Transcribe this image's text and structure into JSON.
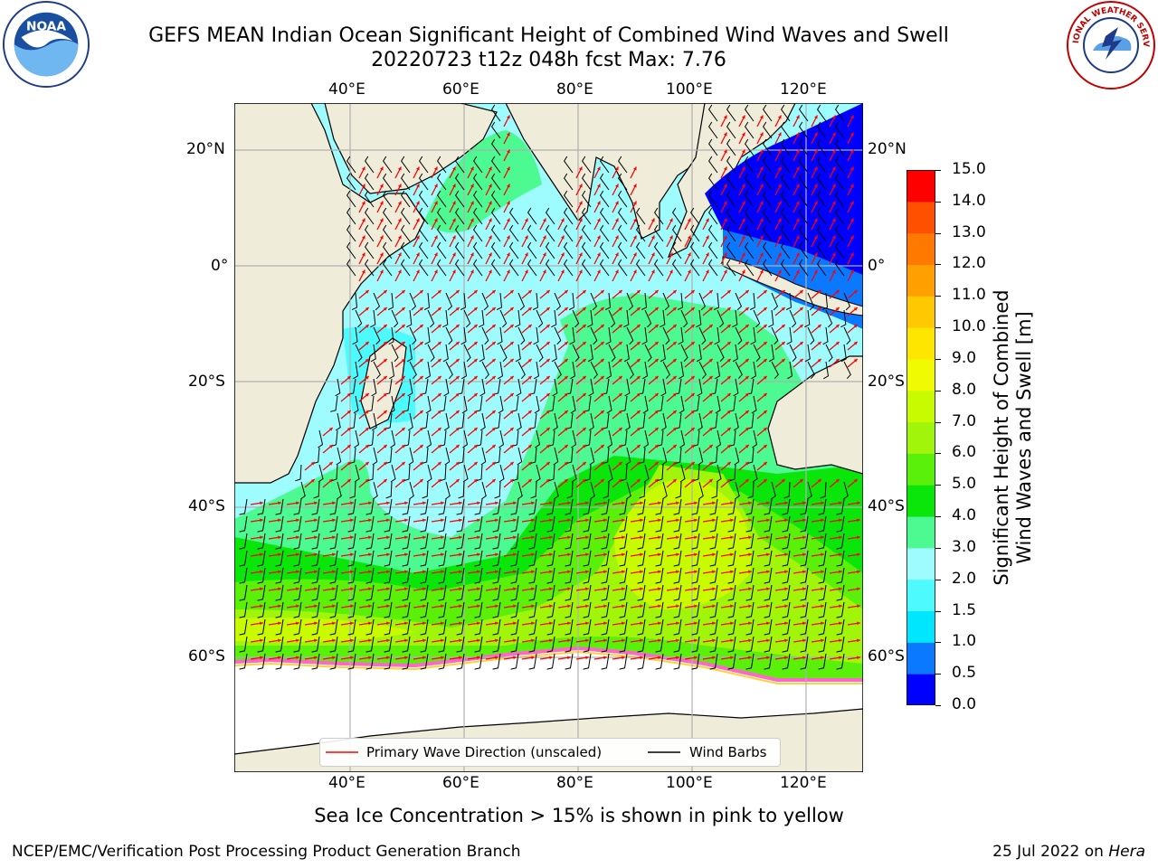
{
  "header": {
    "title_line1": "GEFS MEAN Indian Ocean Significant Height of Combined Wind Waves and Swell",
    "title_line2": "20220723 t12z 048h fcst   Max: 7.76"
  },
  "logos": {
    "left": {
      "icon": "noaa-logo-icon",
      "text": "NOAA"
    },
    "right": {
      "icon": "nws-logo-icon",
      "text": "NATIONAL WEATHER SERVICE"
    }
  },
  "map": {
    "lon_ticks_top": [
      "40°E",
      "60°E",
      "80°E",
      "100°E",
      "120°E"
    ],
    "lon_ticks_bottom": [
      "40°E",
      "60°E",
      "80°E",
      "100°E",
      "120°E"
    ],
    "lat_ticks_left": [
      "20°N",
      "0°",
      "20°S",
      "40°S",
      "60°S"
    ],
    "lat_ticks_right": [
      "20°N",
      "0°",
      "20°S",
      "40°S",
      "60°S"
    ],
    "lon_range": [
      20,
      130
    ],
    "lat_range": [
      -72,
      28
    ],
    "colors": {
      "land": "#efedda",
      "no_data": "#ffffff"
    }
  },
  "legend": {
    "wave_label": "Primary Wave Direction (unscaled)",
    "wave_color": "#ff0000",
    "wind_label": "Wind Barbs",
    "wind_color": "#000000"
  },
  "colorbar": {
    "title_line1": "Significant Height of Combined",
    "title_line2": "Wind Waves and Swell [m]",
    "tick_labels": [
      "0.0",
      "0.5",
      "1.0",
      "1.5",
      "2.0",
      "3.0",
      "4.0",
      "5.0",
      "6.0",
      "7.0",
      "8.0",
      "9.0",
      "10.0",
      "11.0",
      "12.0",
      "13.0",
      "14.0",
      "15.0"
    ],
    "colors": [
      "#0000ff",
      "#0a78ff",
      "#00e6ff",
      "#4dfbff",
      "#9efcff",
      "#4df991",
      "#0ae60a",
      "#5af00a",
      "#a0f50a",
      "#c8fa00",
      "#f0fa00",
      "#ffe600",
      "#ffc800",
      "#ffa000",
      "#ff7800",
      "#ff5000",
      "#ff0000"
    ]
  },
  "notes": {
    "ice_note": "Sea Ice Concentration > 15% is shown in pink to yellow",
    "footer_left": "NCEP/EMC/Verification Post Processing Product Generation Branch",
    "footer_right_prefix": "25 Jul 2022 on ",
    "footer_right_host": "Hera"
  }
}
